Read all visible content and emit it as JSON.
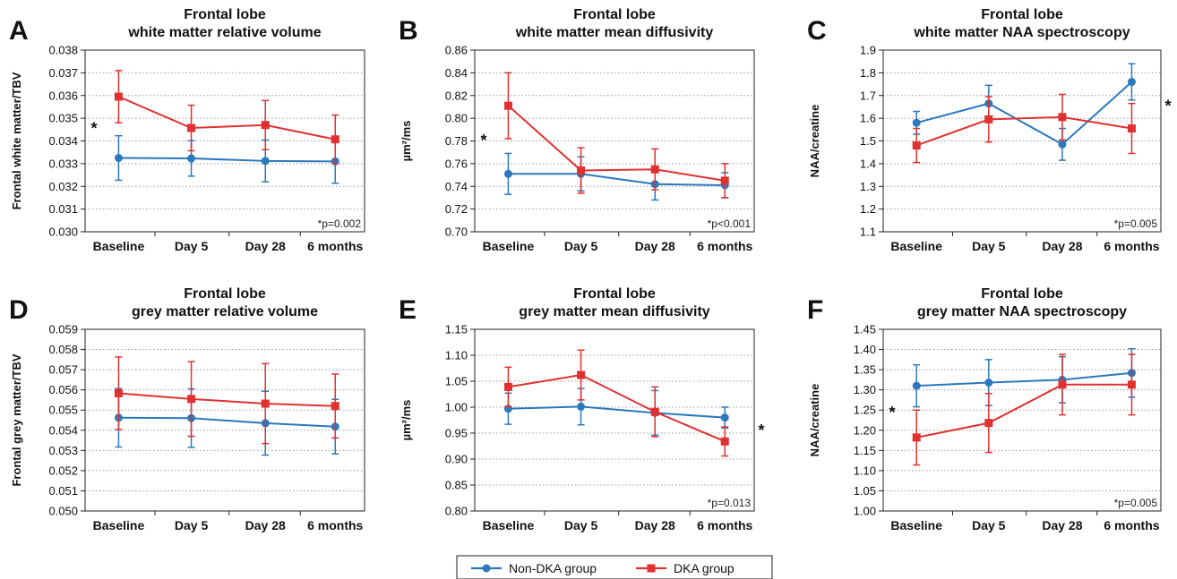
{
  "colors": {
    "nondka": "#2b78bd",
    "dka": "#e03131"
  },
  "legend": {
    "nondka_label": "Non-DKA group",
    "dka_label": "DKA group"
  },
  "chart_data": [
    {
      "panel": "A",
      "type": "line",
      "title": [
        "Frontal lobe",
        "white matter relative volume"
      ],
      "ylabel": "Frontal white matter/TBV",
      "categories": [
        "Baseline",
        "Day 5",
        "Day 28",
        "6 months"
      ],
      "ylim": [
        0.03,
        0.038
      ],
      "yticks": [
        "0.030",
        "0.031",
        "0.032",
        "0.033",
        "0.034",
        "0.035",
        "0.036",
        "0.037",
        "0.038"
      ],
      "grid": true,
      "pnote": "*p=0.002",
      "star": "*",
      "star_side": "left",
      "series": [
        {
          "name": "Non-DKA group",
          "color_key": "nondka",
          "values": [
            0.03325,
            0.03323,
            0.03312,
            0.0331
          ],
          "err": [
            0.00098,
            0.00078,
            0.00092,
            0.00096
          ]
        },
        {
          "name": "DKA group",
          "color_key": "dka",
          "values": [
            0.03595,
            0.03457,
            0.0347,
            0.03407
          ],
          "err": [
            0.00115,
            0.001,
            0.00108,
            0.00107
          ]
        }
      ]
    },
    {
      "panel": "B",
      "type": "line",
      "title": [
        "Frontal lobe",
        "white matter mean diffusivity"
      ],
      "ylabel": "µm²/ms",
      "categories": [
        "Baseline",
        "Day 5",
        "Day 28",
        "6 months"
      ],
      "ylim": [
        0.7,
        0.86
      ],
      "yticks": [
        "0.70",
        "0.72",
        "0.74",
        "0.76",
        "0.78",
        "0.80",
        "0.82",
        "0.84",
        "0.86"
      ],
      "grid": true,
      "pnote": "*p<0.001",
      "star": "*",
      "star_side": "left",
      "series": [
        {
          "name": "Non-DKA group",
          "color_key": "nondka",
          "values": [
            0.751,
            0.751,
            0.742,
            0.741
          ],
          "err": [
            0.018,
            0.015,
            0.014,
            0.011
          ]
        },
        {
          "name": "DKA group",
          "color_key": "dka",
          "values": [
            0.811,
            0.754,
            0.755,
            0.745
          ],
          "err": [
            0.029,
            0.02,
            0.018,
            0.015
          ]
        }
      ]
    },
    {
      "panel": "C",
      "type": "line",
      "title": [
        "Frontal lobe",
        "white matter NAA spectroscopy"
      ],
      "ylabel": "NAA/creatine",
      "categories": [
        "Baseline",
        "Day 5",
        "Day 28",
        "6 months"
      ],
      "ylim": [
        1.1,
        1.9
      ],
      "yticks": [
        "1.1",
        "1.2",
        "1.3",
        "1.4",
        "1.5",
        "1.6",
        "1.7",
        "1.8",
        "1.9"
      ],
      "grid": true,
      "pnote": "*p=0.005",
      "star": "*",
      "star_side": "right",
      "series": [
        {
          "name": "Non-DKA group",
          "color_key": "nondka",
          "values": [
            1.58,
            1.665,
            1.485,
            1.76
          ],
          "err": [
            0.05,
            0.08,
            0.07,
            0.08
          ]
        },
        {
          "name": "DKA group",
          "color_key": "dka",
          "values": [
            1.48,
            1.595,
            1.605,
            1.555
          ],
          "err": [
            0.075,
            0.1,
            0.1,
            0.11
          ]
        }
      ]
    },
    {
      "panel": "D",
      "type": "line",
      "title": [
        "Frontal lobe",
        "grey matter relative volume"
      ],
      "ylabel": "Frontal grey matter/TBV",
      "categories": [
        "Baseline",
        "Day 5",
        "Day 28",
        "6 months"
      ],
      "ylim": [
        0.05,
        0.059
      ],
      "yticks": [
        "0.050",
        "0.051",
        "0.052",
        "0.053",
        "0.054",
        "0.055",
        "0.056",
        "0.057",
        "0.058",
        "0.059"
      ],
      "grid": true,
      "pnote": "",
      "star": "",
      "star_side": "left",
      "series": [
        {
          "name": "Non-DKA group",
          "color_key": "nondka",
          "values": [
            0.05462,
            0.0546,
            0.05435,
            0.05418
          ],
          "err": [
            0.00145,
            0.00145,
            0.00158,
            0.00135
          ]
        },
        {
          "name": "DKA group",
          "color_key": "dka",
          "values": [
            0.05583,
            0.05555,
            0.05532,
            0.0552
          ],
          "err": [
            0.0018,
            0.00185,
            0.00198,
            0.00158
          ]
        }
      ]
    },
    {
      "panel": "E",
      "type": "line",
      "title": [
        "Frontal lobe",
        "grey matter mean diffusivity"
      ],
      "ylabel": "µm²/ms",
      "categories": [
        "Baseline",
        "Day 5",
        "Day 28",
        "6 months"
      ],
      "ylim": [
        0.8,
        1.15
      ],
      "yticks": [
        "0.80",
        "0.85",
        "0.90",
        "0.95",
        "1.00",
        "1.05",
        "1.10",
        "1.15"
      ],
      "grid": true,
      "pnote": "*p=0.013",
      "star": "*",
      "star_side": "right",
      "series": [
        {
          "name": "Non-DKA group",
          "color_key": "nondka",
          "values": [
            0.997,
            1.001,
            0.989,
            0.98
          ],
          "err": [
            0.03,
            0.035,
            0.043,
            0.02
          ]
        },
        {
          "name": "DKA group",
          "color_key": "dka",
          "values": [
            1.039,
            1.062,
            0.991,
            0.934
          ],
          "err": [
            0.038,
            0.048,
            0.048,
            0.028
          ]
        }
      ]
    },
    {
      "panel": "F",
      "type": "line",
      "title": [
        "Frontal lobe",
        "grey matter NAA spectroscopy"
      ],
      "ylabel": "NAA/creatine",
      "categories": [
        "Baseline",
        "Day 5",
        "Day 28",
        "6 months"
      ],
      "ylim": [
        1.0,
        1.45
      ],
      "yticks": [
        "1.00",
        "1.05",
        "1.10",
        "1.15",
        "1.20",
        "1.25",
        "1.30",
        "1.35",
        "1.40",
        "1.45"
      ],
      "grid": true,
      "pnote": "*p=0.005",
      "star": "*",
      "star_side": "left",
      "series": [
        {
          "name": "Non-DKA group",
          "color_key": "nondka",
          "values": [
            1.31,
            1.318,
            1.325,
            1.342
          ],
          "err": [
            0.052,
            0.057,
            0.057,
            0.06
          ]
        },
        {
          "name": "DKA group",
          "color_key": "dka",
          "values": [
            1.182,
            1.218,
            1.313,
            1.313
          ],
          "err": [
            0.068,
            0.073,
            0.075,
            0.075
          ]
        }
      ]
    }
  ]
}
